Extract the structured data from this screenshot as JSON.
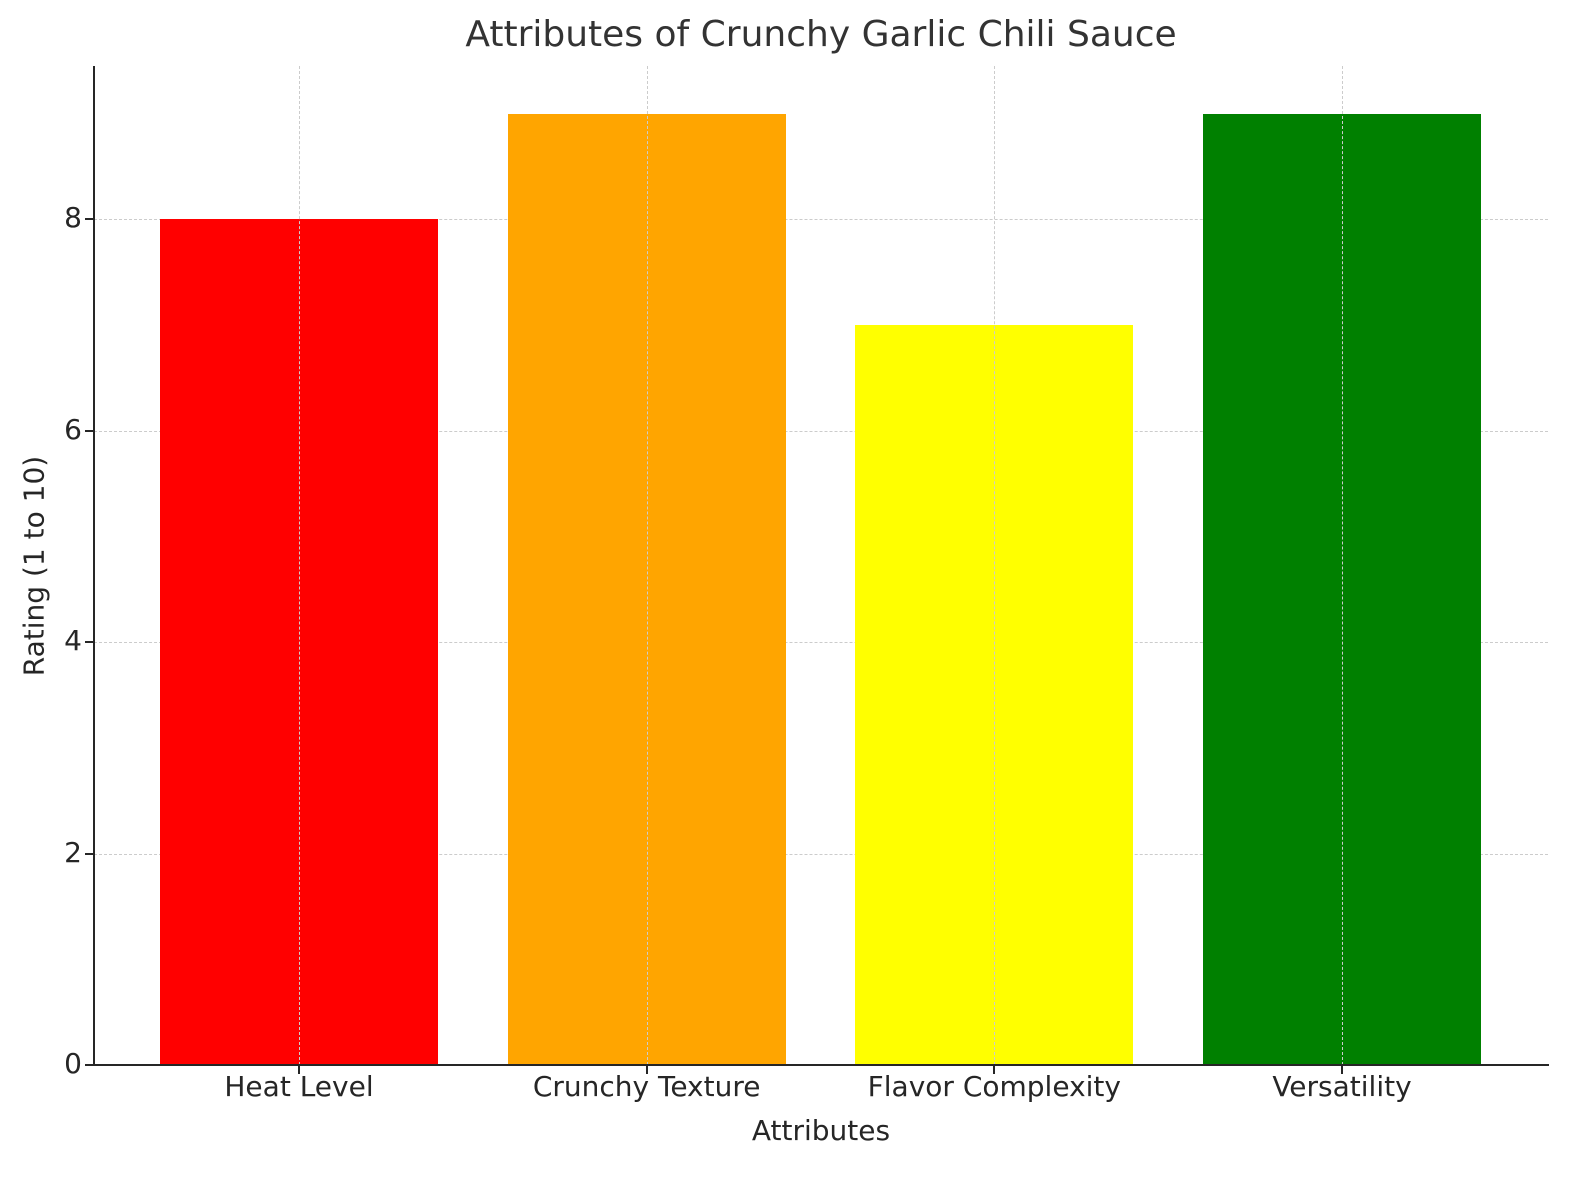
{
  "chart_data": {
    "type": "bar",
    "title": "Attributes of Crunchy Garlic Chili Sauce",
    "xlabel": "Attributes",
    "ylabel": "Rating (1 to 10)",
    "categories": [
      "Heat Level",
      "Crunchy Texture",
      "Flavor Complexity",
      "Versatility"
    ],
    "values": [
      8,
      9,
      7,
      9
    ],
    "colors": [
      "#ff0000",
      "#ffa500",
      "#ffff00",
      "#008000"
    ],
    "ylim": [
      0,
      9.45
    ],
    "yticks": [
      0,
      2,
      4,
      6,
      8
    ],
    "grid": true,
    "grid_style": "dashed",
    "legend": null
  }
}
